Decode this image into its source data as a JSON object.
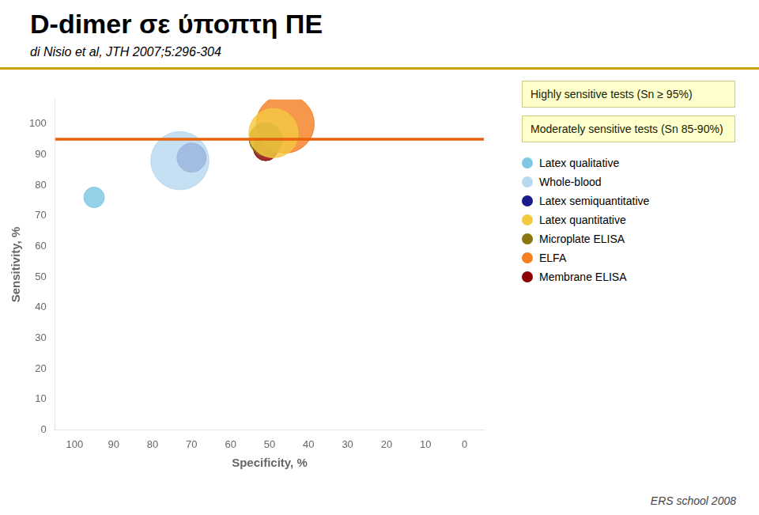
{
  "chart_data": {
    "type": "bubble",
    "title": "D-dimer σε ύποπτη ΠΕ",
    "subtitle": "di Nisio et al, JTH 2007;5:296-304",
    "xlabel": "Specificity, %",
    "ylabel": "Sensitivity, %",
    "annotations": [
      "Highly sensitive tests (Sn ≥ 95%)",
      "Moderately sensitive tests (Sn 85-90%)"
    ],
    "footer": "ERS school 2008",
    "series": [
      {
        "name": "Latex qualitative",
        "color": "#7ec8e3",
        "x": 95,
        "y": 76,
        "size": 350
      },
      {
        "name": "Whole-blood",
        "color": "#b8d8f0",
        "x": 73,
        "y": 88,
        "size": 2800
      },
      {
        "name": "Latex semiquantitative",
        "color": "#1a1a8c",
        "x": 70,
        "y": 89,
        "size": 700
      },
      {
        "name": "Latex quantitative",
        "color": "#f5c842",
        "x": 49,
        "y": 97,
        "size": 2000
      },
      {
        "name": "Microplate ELISA",
        "color": "#8b7510",
        "x": 51,
        "y": 95,
        "size": 900
      },
      {
        "name": "ELFA",
        "color": "#f48024",
        "x": 46,
        "y": 100,
        "size": 2800
      },
      {
        "name": "Membrane ELISA",
        "color": "#8b0000",
        "x": 51,
        "y": 92,
        "size": 500
      }
    ],
    "reference_line": {
      "y": 95,
      "color": "#e8620a"
    },
    "xlim": [
      105,
      -5
    ],
    "ylim": [
      0,
      108
    ],
    "xticks": [
      100,
      90,
      80,
      70,
      60,
      50,
      40,
      30,
      20,
      10,
      0
    ],
    "yticks": [
      0,
      10,
      20,
      30,
      40,
      50,
      60,
      70,
      80,
      90,
      100
    ],
    "grid": false,
    "legend": "right"
  }
}
